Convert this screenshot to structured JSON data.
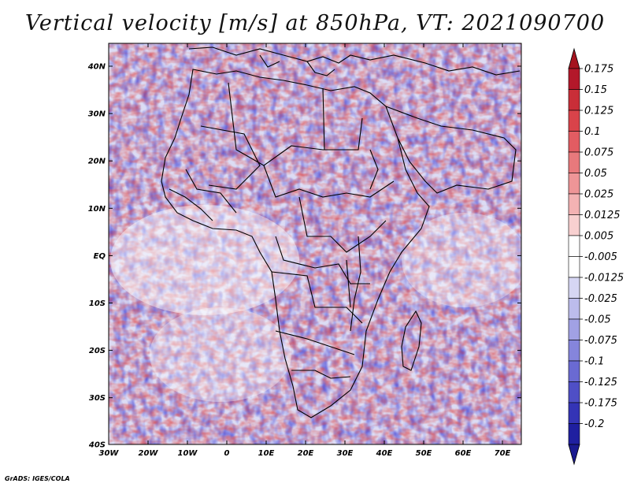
{
  "title": "Vertical velocity [m/s] at 850hPa, VT: 2021090700",
  "credit": "GrADS: IGES/COLA",
  "lat_labels": [
    "40N",
    "30N",
    "20N",
    "10N",
    "EQ",
    "10S",
    "20S",
    "30S",
    "40S"
  ],
  "lon_labels": [
    "30W",
    "20W",
    "10W",
    "0",
    "10E",
    "20E",
    "30E",
    "40E",
    "50E",
    "60E",
    "70E"
  ],
  "colorbar": {
    "levels": [
      "0.175",
      "0.15",
      "0.125",
      "0.1",
      "0.075",
      "0.05",
      "0.025",
      "0.0125",
      "0.005",
      "-0.005",
      "-0.0125",
      "-0.025",
      "-0.05",
      "-0.075",
      "-0.1",
      "-0.125",
      "-0.175",
      "-0.2"
    ],
    "colors": [
      "#b3182a",
      "#c92e38",
      "#d9434a",
      "#e25c62",
      "#e8797c",
      "#ee9597",
      "#f3b2b3",
      "#f8d0d0",
      "#ffffff",
      "#ffffff",
      "#d6d6f3",
      "#bcbcec",
      "#a1a1e4",
      "#8585dc",
      "#6a6ad2",
      "#4f4fc6",
      "#3434b6",
      "#1f1fa0"
    ],
    "top_color": "#a5141f",
    "bottom_color": "#1a1a90"
  }
}
